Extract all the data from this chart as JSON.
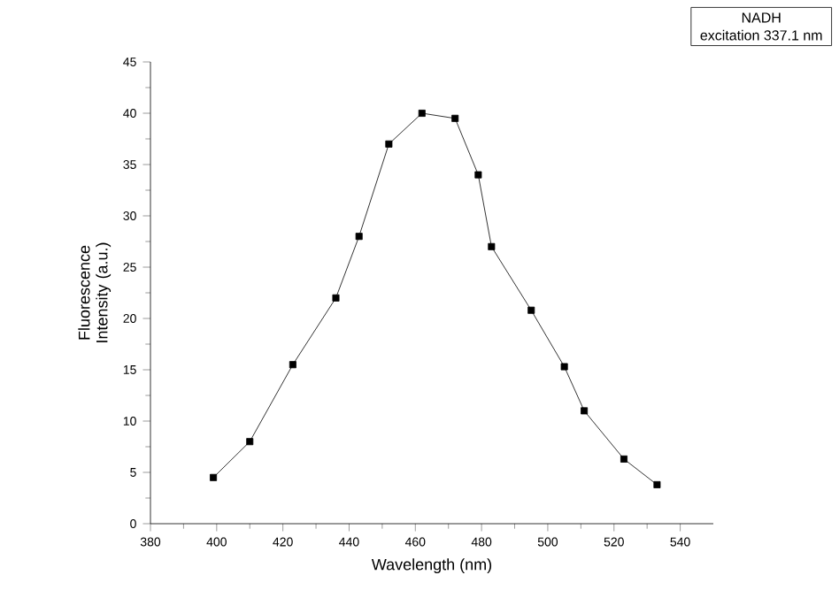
{
  "chart_data": {
    "type": "line",
    "xlabel": "Wavelength (nm)",
    "ylabel": "Fluorescence Intensity (a.u.)",
    "annotations": [
      "NADH",
      "excitation 337.1 nm"
    ],
    "x": [
      399,
      410,
      423,
      436,
      443,
      452,
      462,
      472,
      479,
      483,
      495,
      505,
      511,
      523,
      533
    ],
    "series": [
      {
        "color": "#000000",
        "values": [
          4.5,
          8,
          15.5,
          22,
          28,
          37,
          40,
          39.5,
          34,
          27,
          20.8,
          15.3,
          11,
          6.3,
          3.8
        ]
      }
    ],
    "marker": "square",
    "line_style": "solid",
    "grid": false,
    "xlim": [
      380,
      550
    ],
    "xticks": [
      380,
      400,
      420,
      440,
      460,
      480,
      500,
      520,
      540
    ],
    "ylim": [
      0,
      45
    ],
    "yticks": [
      0,
      5,
      10,
      15,
      20,
      25,
      30,
      35,
      40,
      45
    ]
  }
}
